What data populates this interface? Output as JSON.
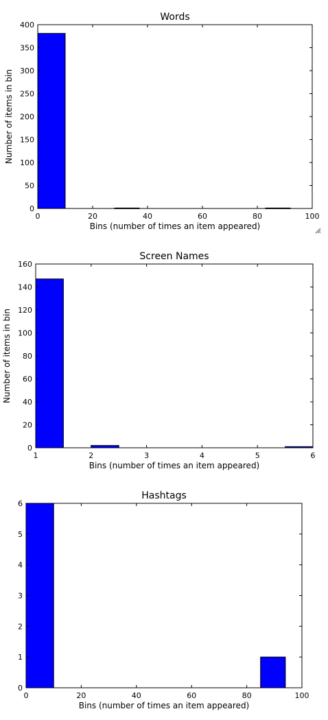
{
  "chart_data": [
    {
      "type": "bar",
      "title": "Words",
      "xlabel": "Bins (number of times an item appeared)",
      "ylabel": "Number of items in bin",
      "xlim": [
        0,
        100
      ],
      "ylim": [
        0,
        400
      ],
      "xticks": [
        0,
        20,
        40,
        60,
        80,
        100
      ],
      "yticks": [
        0,
        50,
        100,
        150,
        200,
        250,
        300,
        350,
        400
      ],
      "grid": false,
      "bar_color": "#0000ff",
      "bins": [
        {
          "x0": 0,
          "x1": 10,
          "value": 381
        },
        {
          "x0": 28,
          "x1": 37,
          "value": 1
        },
        {
          "x0": 83,
          "x1": 92,
          "value": 1
        }
      ]
    },
    {
      "type": "bar",
      "title": "Screen Names",
      "xlabel": "Bins (number of times an item appeared)",
      "ylabel": "Number of items in bin",
      "xlim": [
        1,
        6
      ],
      "ylim": [
        0,
        160
      ],
      "xticks": [
        1,
        2,
        3,
        4,
        5,
        6
      ],
      "yticks": [
        0,
        20,
        40,
        60,
        80,
        100,
        120,
        140,
        160
      ],
      "grid": false,
      "bar_color": "#0000ff",
      "bins": [
        {
          "x0": 1,
          "x1": 1.5,
          "value": 147
        },
        {
          "x0": 2,
          "x1": 2.5,
          "value": 2
        },
        {
          "x0": 5.5,
          "x1": 6,
          "value": 1
        }
      ]
    },
    {
      "type": "bar",
      "title": "Hashtags",
      "xlabel": "Bins (number of times an item appeared)",
      "ylabel": "Number of items in bin",
      "xlim": [
        0,
        100
      ],
      "ylim": [
        0,
        6
      ],
      "xticks": [
        0,
        20,
        40,
        60,
        80,
        100
      ],
      "yticks": [
        0,
        1,
        2,
        3,
        4,
        5,
        6
      ],
      "grid": false,
      "bar_color": "#0000ff",
      "bins": [
        {
          "x0": 0,
          "x1": 10,
          "value": 6
        },
        {
          "x0": 85,
          "x1": 94,
          "value": 1
        }
      ]
    }
  ]
}
